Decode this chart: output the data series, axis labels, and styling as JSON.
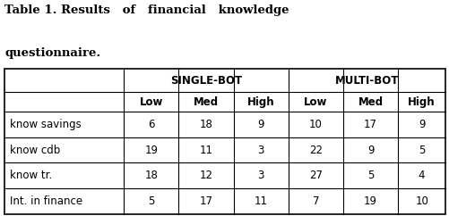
{
  "title_line1": "Table 1. Results   of   financial   knowledge",
  "title_line2": "questionnaire.",
  "header_row1_left": "SINGLE-BOT",
  "header_row1_right": "MULTI-BOT",
  "header_row2": [
    "Low",
    "Med",
    "High",
    "Low",
    "Med",
    "High"
  ],
  "rows": [
    [
      "know savings",
      "6",
      "18",
      "9",
      "10",
      "17",
      "9"
    ],
    [
      "know cdb",
      "19",
      "11",
      "3",
      "22",
      "9",
      "5"
    ],
    [
      "know tr.",
      "18",
      "12",
      "3",
      "27",
      "5",
      "4"
    ],
    [
      "Int. in finance",
      "5",
      "17",
      "11",
      "7",
      "19",
      "10"
    ]
  ],
  "background_color": "#ffffff",
  "text_color": "#000000",
  "border_color": "#000000",
  "title_fontsize": 9.5,
  "header_fontsize": 8.5,
  "data_fontsize": 8.5
}
